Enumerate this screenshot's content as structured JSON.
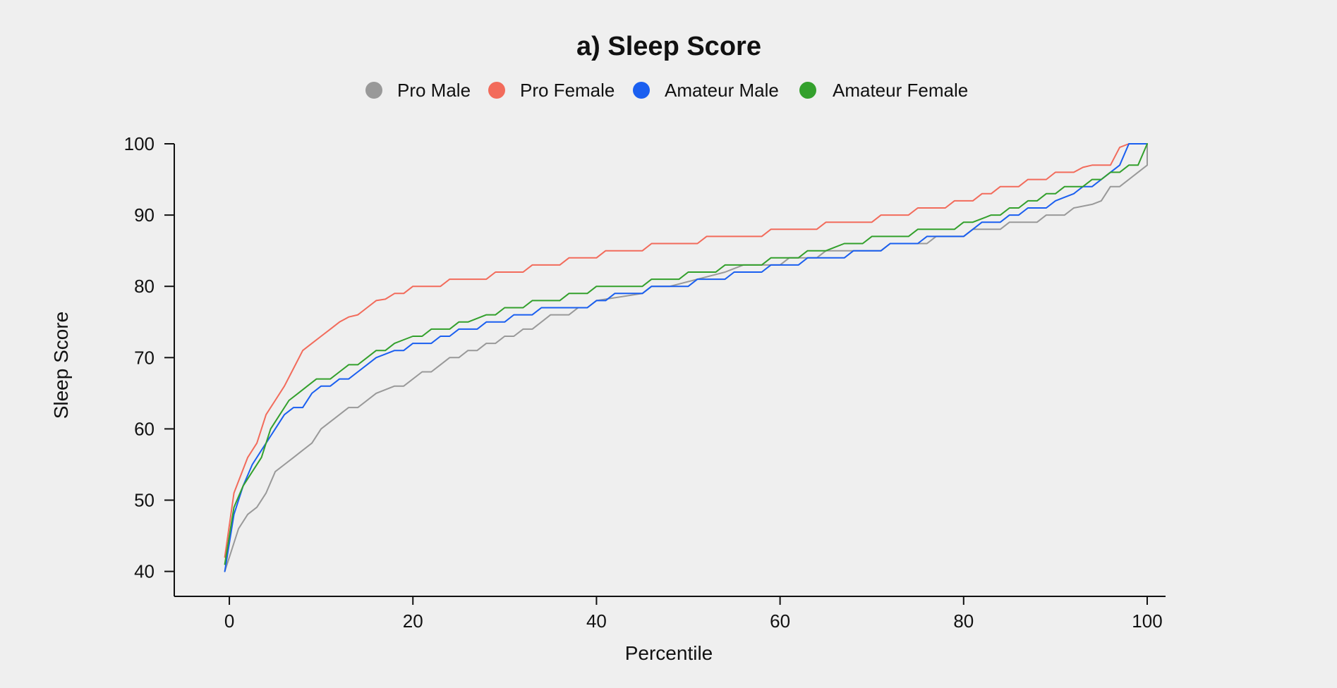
{
  "colors": {
    "background": "#efefef",
    "axis": "#111111",
    "pro_male": "#999999",
    "pro_female": "#f26b5b",
    "amateur_male": "#1a5ff0",
    "amateur_female": "#33a02c"
  },
  "chart_data": {
    "type": "line",
    "title": "a) Sleep Score",
    "xlabel": "Percentile",
    "ylabel": "Sleep Score",
    "xlim": [
      -6,
      102
    ],
    "ylim": [
      36.5,
      100
    ],
    "xticks": [
      0,
      20,
      40,
      60,
      80,
      100
    ],
    "yticks": [
      40,
      50,
      60,
      70,
      80,
      90,
      100
    ],
    "grid": false,
    "legend_position": "top-center",
    "legend": [
      "Pro Male",
      "Pro Female",
      "Amateur Male",
      "Amateur Female"
    ],
    "series": [
      {
        "name": "Pro Male",
        "color": "#999999",
        "points": [
          [
            -0.5,
            40
          ],
          [
            1,
            46
          ],
          [
            2,
            48
          ],
          [
            3,
            49
          ],
          [
            4,
            51
          ],
          [
            5,
            54
          ],
          [
            6,
            55
          ],
          [
            7,
            56
          ],
          [
            8,
            57
          ],
          [
            9,
            58
          ],
          [
            10,
            60
          ],
          [
            12,
            62
          ],
          [
            13,
            63
          ],
          [
            14,
            63
          ],
          [
            16,
            65
          ],
          [
            18,
            66
          ],
          [
            19,
            66
          ],
          [
            21,
            68
          ],
          [
            22,
            68
          ],
          [
            23,
            69
          ],
          [
            24,
            70
          ],
          [
            25,
            70
          ],
          [
            26,
            71
          ],
          [
            27,
            71
          ],
          [
            28,
            72
          ],
          [
            29,
            72
          ],
          [
            30,
            73
          ],
          [
            31,
            73
          ],
          [
            32,
            74
          ],
          [
            33,
            74
          ],
          [
            35,
            76
          ],
          [
            37,
            76
          ],
          [
            38,
            77
          ],
          [
            39,
            77
          ],
          [
            40,
            78
          ],
          [
            45,
            79
          ],
          [
            46,
            80
          ],
          [
            48,
            80
          ],
          [
            51,
            81
          ],
          [
            54,
            82
          ],
          [
            56,
            83
          ],
          [
            60,
            83
          ],
          [
            61,
            84
          ],
          [
            64,
            84
          ],
          [
            65,
            85
          ],
          [
            71,
            85
          ],
          [
            72,
            86
          ],
          [
            76,
            86
          ],
          [
            77,
            87
          ],
          [
            80,
            87
          ],
          [
            81,
            88
          ],
          [
            84,
            88
          ],
          [
            85,
            89
          ],
          [
            88,
            89
          ],
          [
            89,
            90
          ],
          [
            91,
            90
          ],
          [
            92,
            91
          ],
          [
            94,
            91.5
          ],
          [
            95,
            92
          ],
          [
            96,
            94
          ],
          [
            97,
            94
          ],
          [
            100,
            97
          ],
          [
            100,
            100
          ]
        ]
      },
      {
        "name": "Pro Female",
        "color": "#f26b5b",
        "points": [
          [
            -0.5,
            42
          ],
          [
            0.5,
            51
          ],
          [
            2,
            56
          ],
          [
            3,
            58
          ],
          [
            4,
            62
          ],
          [
            5,
            64
          ],
          [
            6,
            66
          ],
          [
            7,
            68.5
          ],
          [
            8,
            71
          ],
          [
            9,
            72
          ],
          [
            10,
            73
          ],
          [
            11,
            74
          ],
          [
            12,
            75
          ],
          [
            13,
            75.7
          ],
          [
            14,
            76
          ],
          [
            15,
            77
          ],
          [
            16,
            78
          ],
          [
            17,
            78.2
          ],
          [
            18,
            79
          ],
          [
            19,
            79
          ],
          [
            20,
            80
          ],
          [
            22,
            80
          ],
          [
            23,
            80
          ],
          [
            24,
            81
          ],
          [
            26,
            81
          ],
          [
            28,
            81
          ],
          [
            29,
            82
          ],
          [
            32,
            82
          ],
          [
            33,
            83
          ],
          [
            36,
            83
          ],
          [
            37,
            84
          ],
          [
            40,
            84
          ],
          [
            41,
            85
          ],
          [
            45,
            85
          ],
          [
            46,
            86
          ],
          [
            51,
            86
          ],
          [
            52,
            87
          ],
          [
            58,
            87
          ],
          [
            59,
            88
          ],
          [
            64,
            88
          ],
          [
            65,
            89
          ],
          [
            70,
            89
          ],
          [
            71,
            90
          ],
          [
            74,
            90
          ],
          [
            75,
            91
          ],
          [
            78,
            91
          ],
          [
            79,
            92
          ],
          [
            81,
            92
          ],
          [
            82,
            93
          ],
          [
            83,
            93
          ],
          [
            84,
            94
          ],
          [
            86,
            94
          ],
          [
            87,
            95
          ],
          [
            89,
            95
          ],
          [
            90,
            96
          ],
          [
            92,
            96
          ],
          [
            93,
            96.7
          ],
          [
            94,
            97
          ],
          [
            96,
            97
          ],
          [
            97,
            99.5
          ],
          [
            98,
            100
          ],
          [
            100,
            100
          ]
        ]
      },
      {
        "name": "Amateur Male",
        "color": "#1a5ff0",
        "points": [
          [
            -0.5,
            40
          ],
          [
            0.5,
            48
          ],
          [
            1.5,
            52
          ],
          [
            2.5,
            55
          ],
          [
            3.5,
            57
          ],
          [
            5,
            60
          ],
          [
            6,
            62
          ],
          [
            7,
            63
          ],
          [
            8,
            63
          ],
          [
            9,
            65
          ],
          [
            10,
            66
          ],
          [
            11,
            66
          ],
          [
            12,
            67
          ],
          [
            13,
            67
          ],
          [
            14,
            68
          ],
          [
            15,
            69
          ],
          [
            16,
            70
          ],
          [
            17,
            70.5
          ],
          [
            18,
            71
          ],
          [
            19,
            71
          ],
          [
            20,
            72
          ],
          [
            21,
            72
          ],
          [
            22,
            72
          ],
          [
            23,
            73
          ],
          [
            24,
            73
          ],
          [
            25,
            74
          ],
          [
            26,
            74
          ],
          [
            27,
            74
          ],
          [
            28,
            75
          ],
          [
            29,
            75
          ],
          [
            30,
            75
          ],
          [
            31,
            76
          ],
          [
            32,
            76
          ],
          [
            33,
            76
          ],
          [
            34,
            77
          ],
          [
            35,
            77
          ],
          [
            37,
            77
          ],
          [
            38,
            77
          ],
          [
            39,
            77
          ],
          [
            40,
            78
          ],
          [
            41,
            78
          ],
          [
            42,
            79
          ],
          [
            45,
            79
          ],
          [
            46,
            80
          ],
          [
            49,
            80
          ],
          [
            50,
            80
          ],
          [
            51,
            81
          ],
          [
            54,
            81
          ],
          [
            55,
            82
          ],
          [
            58,
            82
          ],
          [
            59,
            83
          ],
          [
            62,
            83
          ],
          [
            63,
            84
          ],
          [
            67,
            84
          ],
          [
            68,
            85
          ],
          [
            71,
            85
          ],
          [
            72,
            86
          ],
          [
            75,
            86
          ],
          [
            76,
            87
          ],
          [
            79,
            87
          ],
          [
            80,
            87
          ],
          [
            81,
            88
          ],
          [
            82,
            89
          ],
          [
            84,
            89
          ],
          [
            85,
            90
          ],
          [
            86,
            90
          ],
          [
            87,
            91
          ],
          [
            89,
            91
          ],
          [
            90,
            92
          ],
          [
            91,
            92.5
          ],
          [
            92,
            93
          ],
          [
            93,
            94
          ],
          [
            94,
            94
          ],
          [
            95,
            95
          ],
          [
            97,
            97
          ],
          [
            98,
            100
          ],
          [
            100,
            100
          ]
        ]
      },
      {
        "name": "Amateur Female",
        "color": "#33a02c",
        "points": [
          [
            -0.5,
            41
          ],
          [
            0.5,
            49
          ],
          [
            1.5,
            52
          ],
          [
            2.5,
            54
          ],
          [
            3.5,
            56
          ],
          [
            4.5,
            60
          ],
          [
            5.5,
            62
          ],
          [
            6.5,
            64
          ],
          [
            7.5,
            65
          ],
          [
            8.5,
            66
          ],
          [
            9.5,
            67
          ],
          [
            11,
            67
          ],
          [
            12,
            68
          ],
          [
            13,
            69
          ],
          [
            14,
            69
          ],
          [
            15,
            70
          ],
          [
            16,
            71
          ],
          [
            17,
            71
          ],
          [
            18,
            72
          ],
          [
            19,
            72.5
          ],
          [
            20,
            73
          ],
          [
            21,
            73
          ],
          [
            22,
            74
          ],
          [
            23,
            74
          ],
          [
            24,
            74
          ],
          [
            25,
            75
          ],
          [
            26,
            75
          ],
          [
            27,
            75.5
          ],
          [
            28,
            76
          ],
          [
            29,
            76
          ],
          [
            30,
            77
          ],
          [
            31,
            77
          ],
          [
            32,
            77
          ],
          [
            33,
            78
          ],
          [
            34,
            78
          ],
          [
            36,
            78
          ],
          [
            37,
            79
          ],
          [
            38,
            79
          ],
          [
            39,
            79
          ],
          [
            40,
            80
          ],
          [
            44,
            80
          ],
          [
            45,
            80
          ],
          [
            46,
            81
          ],
          [
            49,
            81
          ],
          [
            50,
            82
          ],
          [
            53,
            82
          ],
          [
            54,
            83
          ],
          [
            58,
            83
          ],
          [
            59,
            84
          ],
          [
            62,
            84
          ],
          [
            63,
            85
          ],
          [
            65,
            85
          ],
          [
            66,
            85.5
          ],
          [
            67,
            86
          ],
          [
            69,
            86
          ],
          [
            70,
            87
          ],
          [
            74,
            87
          ],
          [
            75,
            88
          ],
          [
            79,
            88
          ],
          [
            80,
            89
          ],
          [
            81,
            89
          ],
          [
            82,
            89.5
          ],
          [
            83,
            90
          ],
          [
            84,
            90
          ],
          [
            85,
            91
          ],
          [
            86,
            91
          ],
          [
            87,
            92
          ],
          [
            88,
            92
          ],
          [
            89,
            93
          ],
          [
            90,
            93
          ],
          [
            91,
            94
          ],
          [
            93,
            94
          ],
          [
            94,
            95
          ],
          [
            95,
            95
          ],
          [
            96,
            96
          ],
          [
            97,
            96
          ],
          [
            98,
            97
          ],
          [
            99,
            97
          ],
          [
            100,
            100
          ]
        ]
      }
    ]
  }
}
